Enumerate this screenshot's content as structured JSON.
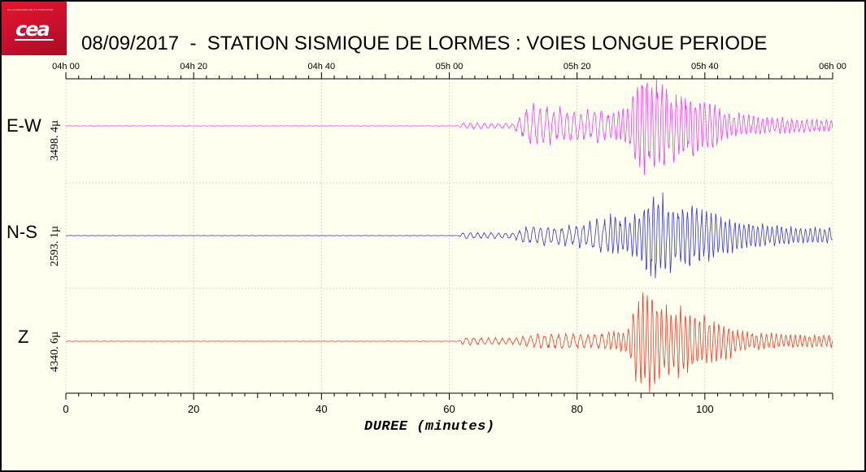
{
  "page": {
    "title": "08/09/2017  -  STATION SISMIQUE DE LORMES : VOIES LONGUE PERIODE",
    "logo": {
      "text": "cea",
      "tagline": "DE LA RECHERCHE À L'INDUSTRIE"
    }
  },
  "colors": {
    "background": "#fffff0",
    "grid": "#dcdcd0",
    "ew": "#ff33ff",
    "ns": "#3333dd",
    "z": "#ff3322",
    "logo": "#c8102e"
  },
  "chart_data": {
    "type": "line",
    "title": "08/09/2017  -  STATION SISMIQUE DE LORMES : VOIES LONGUE PERIODE",
    "xlabel": "DUREE (minutes)",
    "ylabel": "",
    "xlim": [
      0,
      120
    ],
    "x_ticks": [
      0,
      20,
      40,
      60,
      80,
      100
    ],
    "x_tick_labels": [
      "0",
      "20",
      "40",
      "60",
      "80",
      "100"
    ],
    "top_axis_ticks": [
      0,
      20,
      40,
      60,
      80,
      100,
      120
    ],
    "top_axis_labels": [
      "04h 00",
      "04h 20",
      "04h 40",
      "05h 00",
      "05h 20",
      "05h 40",
      "06h 00"
    ],
    "grid": true,
    "legend": "none",
    "series": [
      {
        "name": "E-W",
        "channel_label": "E-W",
        "scale_label": "3498. 4µ",
        "color": "#ff33ff",
        "envelope": [
          [
            0,
            0.003
          ],
          [
            61.5,
            0.003
          ],
          [
            62,
            0.06
          ],
          [
            65,
            0.05
          ],
          [
            70,
            0.05
          ],
          [
            72,
            0.3
          ],
          [
            74,
            0.45
          ],
          [
            76,
            0.35
          ],
          [
            80,
            0.3
          ],
          [
            84,
            0.3
          ],
          [
            88,
            0.35
          ],
          [
            89,
            0.85
          ],
          [
            90,
            1.0
          ],
          [
            92,
            1.0
          ],
          [
            94,
            0.7
          ],
          [
            96,
            0.6
          ],
          [
            99,
            0.55
          ],
          [
            101,
            0.45
          ],
          [
            104,
            0.25
          ],
          [
            110,
            0.15
          ],
          [
            120,
            0.12
          ]
        ]
      },
      {
        "name": "N-S",
        "channel_label": "N-S",
        "scale_label": "2593. 1µ",
        "color": "#3333dd",
        "envelope": [
          [
            0,
            0.003
          ],
          [
            61.5,
            0.003
          ],
          [
            62,
            0.06
          ],
          [
            70,
            0.06
          ],
          [
            72,
            0.18
          ],
          [
            76,
            0.2
          ],
          [
            80,
            0.22
          ],
          [
            84,
            0.35
          ],
          [
            86,
            0.45
          ],
          [
            88,
            0.35
          ],
          [
            90,
            0.55
          ],
          [
            92,
            1.0
          ],
          [
            94,
            0.75
          ],
          [
            96,
            0.65
          ],
          [
            99,
            0.6
          ],
          [
            101,
            0.5
          ],
          [
            104,
            0.35
          ],
          [
            110,
            0.2
          ],
          [
            120,
            0.15
          ]
        ]
      },
      {
        "name": "Z",
        "channel_label": "Z",
        "scale_label": "4340. 6µ",
        "color": "#ff3322",
        "envelope": [
          [
            0,
            0.003
          ],
          [
            61.5,
            0.003
          ],
          [
            62,
            0.08
          ],
          [
            70,
            0.06
          ],
          [
            72,
            0.12
          ],
          [
            76,
            0.16
          ],
          [
            82,
            0.14
          ],
          [
            88,
            0.25
          ],
          [
            89,
            0.8
          ],
          [
            90,
            1.0
          ],
          [
            92,
            0.95
          ],
          [
            94,
            0.7
          ],
          [
            96,
            0.65
          ],
          [
            99,
            0.55
          ],
          [
            102,
            0.4
          ],
          [
            106,
            0.2
          ],
          [
            112,
            0.14
          ],
          [
            120,
            0.12
          ]
        ]
      }
    ]
  }
}
